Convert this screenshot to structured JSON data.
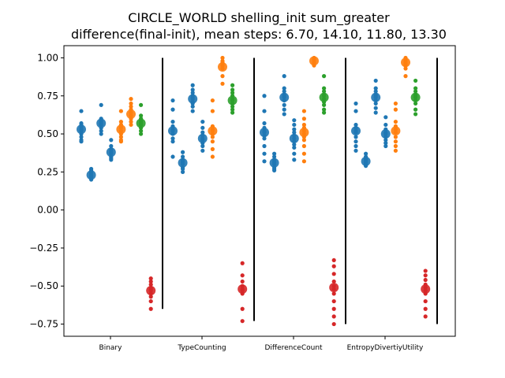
{
  "chart_data": {
    "type": "scatter",
    "title": "CIRCLE_WORLD shelling_init sum_greater",
    "subtitle": "difference(final-init), mean steps: 6.70, 14.10, 11.80, 13.30",
    "xlabel": "",
    "ylabel": "",
    "ylim": [
      -0.83,
      1.08
    ],
    "yticks": [
      1.0,
      0.75,
      0.5,
      0.25,
      0.0,
      -0.25,
      -0.5,
      -0.75
    ],
    "ytick_labels": [
      "1.00",
      "0.75",
      "0.50",
      "0.25",
      "0.00",
      "−0.25",
      "−0.50",
      "−0.75"
    ],
    "categories": [
      "Binary",
      "TypeCounting",
      "DifferenceCount",
      "EntropyDivertiyUtility"
    ],
    "grid": false,
    "colors": {
      "blue": "#1f77b4",
      "orange": "#ff7f0e",
      "green": "#2ca02c",
      "red": "#d62728",
      "separator": "#000000"
    },
    "groups": [
      {
        "category": "Binary",
        "separator_range": [
          -0.65,
          1.0
        ],
        "strips": [
          {
            "color": "blue",
            "mean": 0.53,
            "points": [
              0.65,
              0.57,
              0.56,
              0.55,
              0.54,
              0.53,
              0.52,
              0.5,
              0.48,
              0.46,
              0.45
            ]
          },
          {
            "color": "blue",
            "mean": 0.23,
            "points": [
              0.27,
              0.26,
              0.25,
              0.24,
              0.23,
              0.22,
              0.21,
              0.2
            ]
          },
          {
            "color": "blue",
            "mean": 0.57,
            "points": [
              0.69,
              0.6,
              0.59,
              0.58,
              0.57,
              0.56,
              0.54,
              0.52,
              0.5
            ]
          },
          {
            "color": "blue",
            "mean": 0.38,
            "points": [
              0.46,
              0.42,
              0.4,
              0.39,
              0.38,
              0.37,
              0.35,
              0.34,
              0.33
            ]
          },
          {
            "color": "orange",
            "mean": 0.53,
            "points": [
              0.65,
              0.58,
              0.56,
              0.55,
              0.54,
              0.52,
              0.5,
              0.48,
              0.46,
              0.45
            ]
          },
          {
            "color": "orange",
            "mean": 0.63,
            "points": [
              0.73,
              0.7,
              0.68,
              0.66,
              0.64,
              0.62,
              0.6,
              0.58,
              0.56
            ]
          },
          {
            "color": "green",
            "mean": 0.57,
            "points": [
              0.69,
              0.62,
              0.6,
              0.59,
              0.58,
              0.57,
              0.56,
              0.54,
              0.52,
              0.5
            ]
          },
          {
            "color": "red",
            "mean": -0.53,
            "points": [
              -0.45,
              -0.47,
              -0.49,
              -0.51,
              -0.52,
              -0.53,
              -0.55,
              -0.57,
              -0.6,
              -0.65
            ]
          }
        ]
      },
      {
        "category": "TypeCounting",
        "separator_range": [
          -0.73,
          1.0
        ],
        "strips": [
          {
            "color": "blue",
            "mean": 0.52,
            "points": [
              0.72,
              0.66,
              0.58,
              0.55,
              0.53,
              0.52,
              0.5,
              0.47,
              0.45,
              0.35
            ]
          },
          {
            "color": "blue",
            "mean": 0.31,
            "points": [
              0.38,
              0.35,
              0.33,
              0.32,
              0.31,
              0.3,
              0.28,
              0.27,
              0.25
            ]
          },
          {
            "color": "blue",
            "mean": 0.73,
            "points": [
              0.82,
              0.79,
              0.77,
              0.75,
              0.74,
              0.73,
              0.71,
              0.7,
              0.68,
              0.65
            ]
          },
          {
            "color": "blue",
            "mean": 0.47,
            "points": [
              0.58,
              0.54,
              0.51,
              0.49,
              0.47,
              0.46,
              0.44,
              0.42,
              0.39
            ]
          },
          {
            "color": "orange",
            "mean": 0.52,
            "points": [
              0.72,
              0.65,
              0.55,
              0.53,
              0.52,
              0.5,
              0.48,
              0.45,
              0.4,
              0.35
            ]
          },
          {
            "color": "orange",
            "mean": 0.94,
            "points": [
              1.0,
              0.98,
              0.97,
              0.96,
              0.95,
              0.93,
              0.88,
              0.83
            ]
          },
          {
            "color": "green",
            "mean": 0.72,
            "points": [
              0.82,
              0.79,
              0.77,
              0.75,
              0.73,
              0.72,
              0.7,
              0.68,
              0.66,
              0.64
            ]
          },
          {
            "color": "red",
            "mean": -0.52,
            "points": [
              -0.35,
              -0.43,
              -0.47,
              -0.5,
              -0.52,
              -0.53,
              -0.55,
              -0.65,
              -0.73
            ]
          }
        ]
      },
      {
        "category": "DifferenceCount",
        "separator_range": [
          -0.75,
          1.0
        ],
        "strips": [
          {
            "color": "blue",
            "mean": 0.51,
            "points": [
              0.75,
              0.65,
              0.57,
              0.54,
              0.52,
              0.51,
              0.49,
              0.47,
              0.42,
              0.37,
              0.32
            ]
          },
          {
            "color": "blue",
            "mean": 0.31,
            "points": [
              0.37,
              0.35,
              0.33,
              0.32,
              0.31,
              0.3,
              0.28,
              0.27,
              0.26
            ]
          },
          {
            "color": "blue",
            "mean": 0.74,
            "points": [
              0.88,
              0.8,
              0.78,
              0.76,
              0.75,
              0.74,
              0.72,
              0.69,
              0.66,
              0.63
            ]
          },
          {
            "color": "blue",
            "mean": 0.47,
            "points": [
              0.59,
              0.56,
              0.53,
              0.51,
              0.49,
              0.47,
              0.45,
              0.43,
              0.41,
              0.37,
              0.33
            ]
          },
          {
            "color": "orange",
            "mean": 0.51,
            "points": [
              0.65,
              0.6,
              0.56,
              0.54,
              0.52,
              0.5,
              0.48,
              0.46,
              0.42,
              0.37,
              0.32
            ]
          },
          {
            "color": "orange",
            "mean": 0.98,
            "points": [
              1.0,
              0.99,
              0.98,
              0.97,
              0.96,
              0.95
            ]
          },
          {
            "color": "green",
            "mean": 0.74,
            "points": [
              0.88,
              0.8,
              0.78,
              0.76,
              0.75,
              0.73,
              0.71,
              0.69,
              0.66,
              0.64
            ]
          },
          {
            "color": "red",
            "mean": -0.51,
            "points": [
              -0.33,
              -0.37,
              -0.42,
              -0.47,
              -0.5,
              -0.52,
              -0.55,
              -0.6,
              -0.65,
              -0.7,
              -0.75
            ]
          }
        ]
      },
      {
        "category": "EntropyDivertiyUtility",
        "separator_range": [
          -0.75,
          1.0
        ],
        "strips": [
          {
            "color": "blue",
            "mean": 0.52,
            "points": [
              0.7,
              0.65,
              0.56,
              0.54,
              0.52,
              0.51,
              0.48,
              0.45,
              0.42,
              0.39
            ]
          },
          {
            "color": "blue",
            "mean": 0.32,
            "points": [
              0.37,
              0.35,
              0.34,
              0.33,
              0.32,
              0.31,
              0.3,
              0.29
            ]
          },
          {
            "color": "blue",
            "mean": 0.74,
            "points": [
              0.85,
              0.8,
              0.78,
              0.76,
              0.75,
              0.74,
              0.72,
              0.7,
              0.67,
              0.64
            ]
          },
          {
            "color": "blue",
            "mean": 0.5,
            "points": [
              0.61,
              0.56,
              0.53,
              0.51,
              0.5,
              0.48,
              0.46,
              0.44,
              0.42
            ]
          },
          {
            "color": "orange",
            "mean": 0.52,
            "points": [
              0.7,
              0.66,
              0.58,
              0.55,
              0.53,
              0.51,
              0.48,
              0.45,
              0.42,
              0.39
            ]
          },
          {
            "color": "orange",
            "mean": 0.97,
            "points": [
              1.0,
              0.99,
              0.98,
              0.97,
              0.96,
              0.95,
              0.93,
              0.88
            ]
          },
          {
            "color": "green",
            "mean": 0.74,
            "points": [
              0.85,
              0.8,
              0.78,
              0.76,
              0.75,
              0.74,
              0.72,
              0.7,
              0.66,
              0.63
            ]
          },
          {
            "color": "red",
            "mean": -0.52,
            "points": [
              -0.4,
              -0.43,
              -0.46,
              -0.49,
              -0.51,
              -0.53,
              -0.55,
              -0.6,
              -0.65,
              -0.7
            ]
          }
        ]
      }
    ]
  }
}
